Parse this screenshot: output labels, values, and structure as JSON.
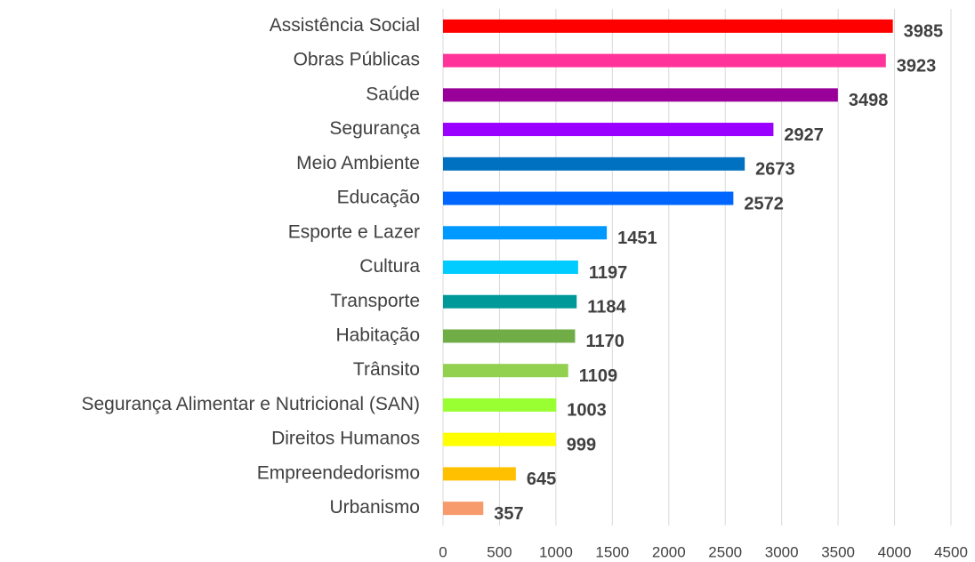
{
  "chart_data": {
    "type": "bar",
    "orientation": "horizontal",
    "categories": [
      "Assistência Social",
      "Obras Públicas",
      "Saúde",
      "Segurança",
      "Meio Ambiente",
      "Educação",
      "Esporte e Lazer",
      "Cultura",
      "Transporte",
      "Habitação",
      "Trânsito",
      "Segurança Alimentar e Nutricional (SAN)",
      "Direitos Humanos",
      "Empreendedorismo",
      "Urbanismo"
    ],
    "values": [
      3985,
      3923,
      3498,
      2927,
      2673,
      2572,
      1451,
      1197,
      1184,
      1170,
      1109,
      1003,
      999,
      645,
      357
    ],
    "colors": [
      "#ff0000",
      "#ff3399",
      "#990099",
      "#9900ff",
      "#0070c0",
      "#0066ff",
      "#0099ff",
      "#00ccff",
      "#009999",
      "#70ad47",
      "#92d050",
      "#99ff33",
      "#ffff00",
      "#ffc000",
      "#f79b6d"
    ],
    "xlim": [
      0,
      4500
    ],
    "xticks": [
      0,
      500,
      1000,
      1500,
      2000,
      2500,
      3000,
      3500,
      4000,
      4500
    ],
    "grid": true
  }
}
